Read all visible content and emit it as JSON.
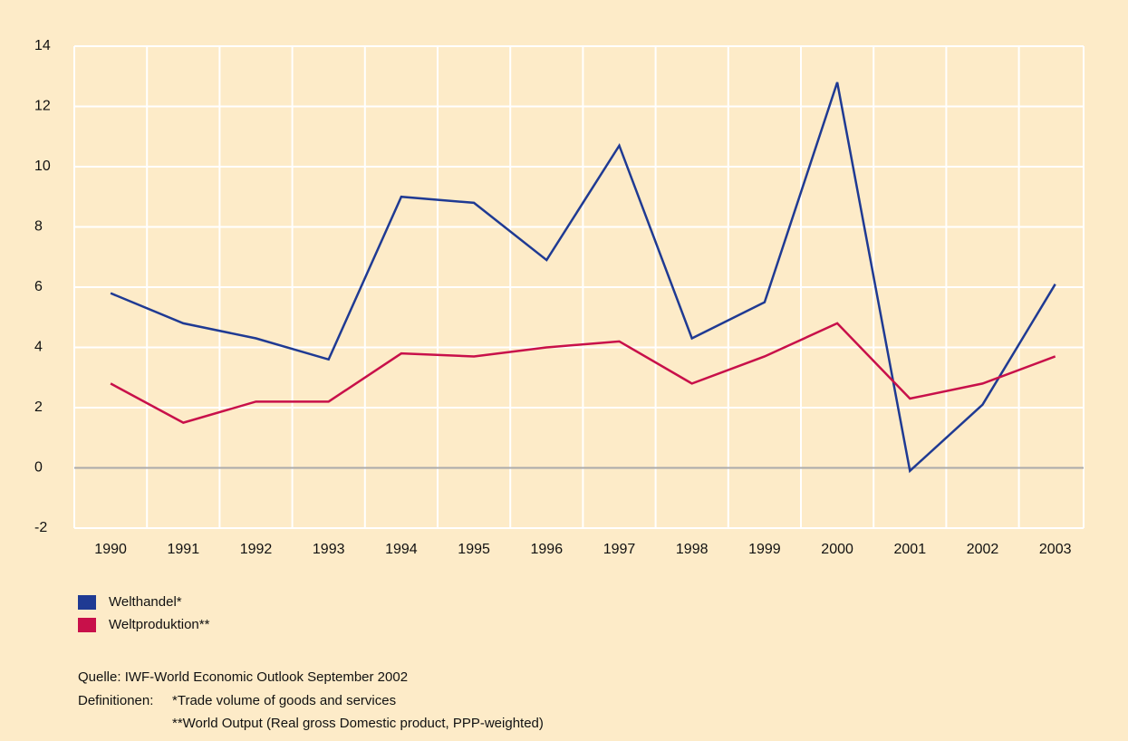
{
  "chart_data": {
    "type": "line",
    "categories": [
      "1990",
      "1991",
      "1992",
      "1993",
      "1994",
      "1995",
      "1996",
      "1997",
      "1998",
      "1999",
      "2000",
      "2001",
      "2002",
      "2003"
    ],
    "series": [
      {
        "name": "Welthandel*",
        "color": "#1f3a93",
        "values": [
          5.8,
          4.8,
          4.3,
          3.6,
          9.0,
          8.8,
          6.9,
          10.7,
          4.3,
          5.5,
          12.8,
          -0.1,
          2.1,
          6.1
        ]
      },
      {
        "name": "Weltproduktion**",
        "color": "#c8104a",
        "values": [
          2.8,
          1.5,
          2.2,
          2.2,
          3.8,
          3.7,
          4.0,
          4.2,
          2.8,
          3.7,
          4.8,
          2.3,
          2.8,
          3.7
        ]
      }
    ],
    "ylim": [
      -2,
      14
    ],
    "yticks": [
      -2,
      0,
      2,
      4,
      6,
      8,
      10,
      12,
      14
    ],
    "grid": true,
    "source": "Quelle: IWF-World Economic Outlook September 2002",
    "definitions_label": "Definitionen:",
    "definitions": [
      "*Trade volume of goods and services",
      "**World Output (Real gross Domestic product, PPP-weighted)"
    ]
  }
}
